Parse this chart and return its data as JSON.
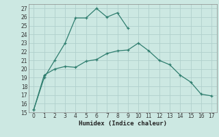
{
  "series1_x": [
    0,
    1,
    2,
    3,
    4,
    5,
    6,
    7,
    8,
    9
  ],
  "series1_y": [
    15.3,
    19.0,
    21.0,
    23.0,
    25.9,
    25.9,
    27.0,
    26.0,
    26.5,
    24.7
  ],
  "series2_x": [
    0,
    1,
    2,
    3,
    4,
    5,
    6,
    7,
    8,
    9,
    10,
    11,
    12,
    13,
    14,
    15,
    16,
    17
  ],
  "series2_y": [
    15.3,
    19.3,
    20.0,
    20.3,
    20.2,
    20.9,
    21.1,
    21.8,
    22.1,
    22.2,
    23.0,
    22.1,
    21.0,
    20.5,
    19.3,
    18.5,
    17.1,
    16.9
  ],
  "line_color": "#2e7d6e",
  "bg_color": "#cce8e2",
  "grid_color": "#b0d0cc",
  "xlabel": "Humidex (Indice chaleur)",
  "xlim": [
    -0.5,
    17.5
  ],
  "ylim": [
    15,
    27.5
  ],
  "yticks": [
    15,
    16,
    17,
    18,
    19,
    20,
    21,
    22,
    23,
    24,
    25,
    26,
    27
  ],
  "xticks": [
    0,
    1,
    2,
    3,
    4,
    5,
    6,
    7,
    8,
    9,
    10,
    11,
    12,
    13,
    14,
    15,
    16,
    17
  ]
}
